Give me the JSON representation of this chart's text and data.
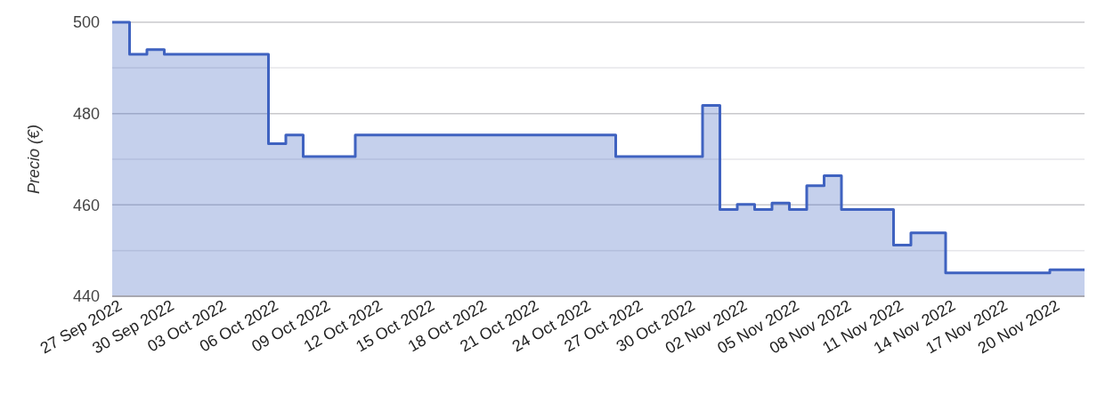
{
  "chart_data": {
    "type": "area",
    "ylabel": "Precio (€)",
    "x": [
      "2022-09-26T06:00",
      "2022-09-27T06:00",
      "2022-09-27T06:00",
      "2022-09-28T06:00",
      "2022-09-28T06:00",
      "2022-09-29T06:00",
      "2022-09-29T06:00",
      "2022-10-05T06:00",
      "2022-10-05T06:00",
      "2022-10-06T06:00",
      "2022-10-06T06:00",
      "2022-10-07T06:00",
      "2022-10-07T06:00",
      "2022-10-10T06:00",
      "2022-10-10T06:00",
      "2022-10-25T06:00",
      "2022-10-25T06:00",
      "2022-10-30T06:00",
      "2022-10-30T06:00",
      "2022-10-31T06:00",
      "2022-10-31T06:00",
      "2022-11-01T06:00",
      "2022-11-01T06:00",
      "2022-11-02T06:00",
      "2022-11-02T06:00",
      "2022-11-03T06:00",
      "2022-11-03T06:00",
      "2022-11-04T06:00",
      "2022-11-04T06:00",
      "2022-11-05T06:00",
      "2022-11-05T06:00",
      "2022-11-06T06:00",
      "2022-11-06T06:00",
      "2022-11-07T06:00",
      "2022-11-07T06:00",
      "2022-11-10T06:00",
      "2022-11-10T06:00",
      "2022-11-11T06:00",
      "2022-11-11T06:00",
      "2022-11-13T06:00",
      "2022-11-13T06:00",
      "2022-11-19T06:00",
      "2022-11-19T06:00",
      "2022-11-21T06:00"
    ],
    "series": [
      {
        "color": "#3f62c0",
        "values": [
          500,
          500,
          493,
          493,
          494,
          494,
          493,
          493,
          473.4,
          473.4,
          475.3,
          475.3,
          470.6,
          470.6,
          475.3,
          475.3,
          470.6,
          470.6,
          481.8,
          481.8,
          459,
          459,
          460.1,
          460.1,
          459,
          459,
          460.4,
          460.4,
          459,
          459,
          464.2,
          464.2,
          466.4,
          466.4,
          459,
          459,
          451.2,
          451.2,
          453.9,
          453.9,
          445.1,
          445.1,
          445.8,
          445.8
        ]
      }
    ],
    "xlim": [
      "2022-09-26T06:00",
      "2022-11-21T06:00"
    ],
    "xticks": [
      {
        "value": "2022-09-27",
        "label": "27 Sep 2022"
      },
      {
        "value": "2022-09-30",
        "label": "30 Sep 2022"
      },
      {
        "value": "2022-10-03",
        "label": "03 Oct 2022"
      },
      {
        "value": "2022-10-06",
        "label": "06 Oct 2022"
      },
      {
        "value": "2022-10-09",
        "label": "09 Oct 2022"
      },
      {
        "value": "2022-10-12",
        "label": "12 Oct 2022"
      },
      {
        "value": "2022-10-15",
        "label": "15 Oct 2022"
      },
      {
        "value": "2022-10-18",
        "label": "18 Oct 2022"
      },
      {
        "value": "2022-10-21",
        "label": "21 Oct 2022"
      },
      {
        "value": "2022-10-24",
        "label": "24 Oct 2022"
      },
      {
        "value": "2022-10-27",
        "label": "27 Oct 2022"
      },
      {
        "value": "2022-10-30",
        "label": "30 Oct 2022"
      },
      {
        "value": "2022-11-02",
        "label": "02 Nov 2022"
      },
      {
        "value": "2022-11-05",
        "label": "05 Nov 2022"
      },
      {
        "value": "2022-11-08",
        "label": "08 Nov 2022"
      },
      {
        "value": "2022-11-11",
        "label": "11 Nov 2022"
      },
      {
        "value": "2022-11-14",
        "label": "14 Nov 2022"
      },
      {
        "value": "2022-11-17",
        "label": "17 Nov 2022"
      },
      {
        "value": "2022-11-20",
        "label": "20 Nov 2022"
      }
    ],
    "ylim": [
      440,
      500
    ],
    "yticks": [
      440,
      {
        "value": 450,
        "label": null
      },
      460,
      {
        "value": 470,
        "label": null
      },
      480,
      {
        "value": 490,
        "label": null
      },
      500
    ],
    "grid": "y"
  }
}
